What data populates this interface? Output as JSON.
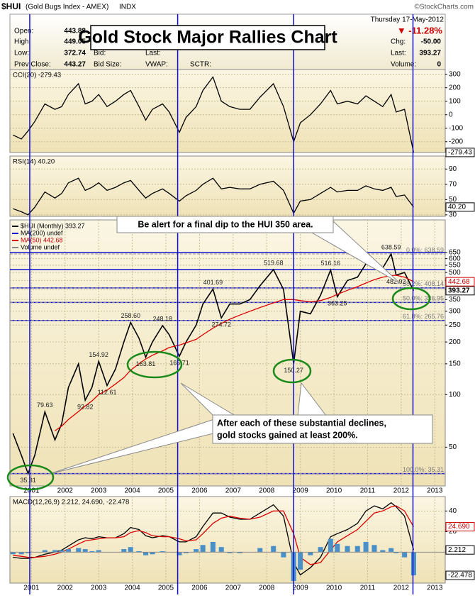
{
  "header": {
    "symbol": "$HUI",
    "name": "(Gold Bugs Index - AMEX)",
    "exchange": "INDX",
    "copyright": "©StockCharts.com",
    "date": "Thursday  17-May-2012",
    "change_pct": "▼ -11.28%",
    "left_fields": [
      {
        "label": "Open:",
        "value": "443.88"
      },
      {
        "label": "High:",
        "value": "449.05"
      },
      {
        "label": "Low:",
        "value": "372.74"
      },
      {
        "label": "Prev Close:",
        "value": "443.27"
      }
    ],
    "mid_fields": [
      {
        "label": "Bid:",
        "y_row": "3"
      },
      {
        "label": "Bid Size:"
      }
    ],
    "mid2_fields": [
      "Last:",
      "VWAP:"
    ],
    "sctr": "SCTR:",
    "right_fields": [
      {
        "label": "Chg:",
        "value": "-50.00"
      },
      {
        "label": "Last:",
        "value": "393.27"
      },
      {
        "label": "Volume:",
        "value": "0"
      }
    ]
  },
  "title": "Gold Stock Major Rallies Chart",
  "annotations": {
    "top": "Be alert for a final dip to the HUI 350 area.",
    "bottom": [
      "After each of these substantial declines,",
      "gold stocks gained at least 200%."
    ]
  },
  "vertical_lines": [
    2000.95,
    2005.35,
    2008.8,
    2012.35
  ],
  "chart_data": [
    {
      "type": "line",
      "title": "CCI(20) -279.43",
      "xlim": [
        2000.36,
        2013.31
      ],
      "ylim": [
        -280,
        335
      ],
      "yticks": [
        300,
        200,
        100,
        0,
        -100,
        -200
      ],
      "x": [
        2000.45,
        2000.7,
        2000.9,
        2001.1,
        2001.4,
        2001.7,
        2001.9,
        2002.1,
        2002.4,
        2002.6,
        2002.8,
        2003.0,
        2003.25,
        2003.5,
        2003.75,
        2003.95,
        2004.2,
        2004.4,
        2004.6,
        2004.9,
        2005.1,
        2005.4,
        2005.6,
        2005.9,
        2006.1,
        2006.4,
        2006.65,
        2006.9,
        2007.2,
        2007.5,
        2007.8,
        2008.2,
        2008.5,
        2008.8,
        2009.0,
        2009.3,
        2009.6,
        2009.9,
        2010.1,
        2010.4,
        2010.7,
        2010.95,
        2011.2,
        2011.45,
        2011.7,
        2011.85,
        2012.1,
        2012.37
      ],
      "series": [
        {
          "color": "#000000",
          "values": [
            -150,
            -180,
            -120,
            -50,
            80,
            40,
            60,
            150,
            230,
            80,
            100,
            150,
            60,
            100,
            150,
            180,
            60,
            -40,
            40,
            80,
            20,
            -130,
            -20,
            60,
            180,
            280,
            100,
            60,
            40,
            40,
            130,
            230,
            60,
            -200,
            -60,
            0,
            80,
            180,
            80,
            100,
            80,
            140,
            100,
            60,
            150,
            20,
            40,
            -279.43
          ]
        }
      ],
      "last_labels": [
        "-279.43"
      ]
    },
    {
      "type": "line",
      "title": "RSI(14) 40.20",
      "xlim": [
        2000.36,
        2013.31
      ],
      "ylim": [
        28,
        107
      ],
      "yticks": [
        90,
        70,
        50,
        30
      ],
      "x": [
        2000.45,
        2000.7,
        2000.9,
        2001.1,
        2001.4,
        2001.7,
        2001.9,
        2002.1,
        2002.4,
        2002.6,
        2002.8,
        2003.0,
        2003.25,
        2003.5,
        2003.75,
        2003.95,
        2004.2,
        2004.4,
        2004.6,
        2004.9,
        2005.1,
        2005.4,
        2005.6,
        2005.9,
        2006.1,
        2006.4,
        2006.65,
        2006.9,
        2007.2,
        2007.5,
        2007.8,
        2008.2,
        2008.5,
        2008.8,
        2009.0,
        2009.3,
        2009.6,
        2009.9,
        2010.1,
        2010.4,
        2010.7,
        2010.95,
        2011.2,
        2011.45,
        2011.7,
        2011.85,
        2012.1,
        2012.37
      ],
      "series": [
        {
          "color": "#000000",
          "values": [
            38,
            34,
            30,
            40,
            60,
            52,
            58,
            72,
            78,
            62,
            66,
            72,
            62,
            66,
            72,
            75,
            62,
            52,
            58,
            64,
            58,
            48,
            55,
            62,
            70,
            78,
            64,
            66,
            64,
            64,
            70,
            74,
            62,
            32,
            48,
            50,
            58,
            66,
            60,
            62,
            62,
            68,
            64,
            62,
            66,
            54,
            56,
            40.2
          ]
        }
      ],
      "last_labels": [
        "40.20"
      ]
    },
    {
      "type": "line",
      "log": true,
      "xlim": [
        2000.36,
        2013.31
      ],
      "ylim": [
        30,
        1000
      ],
      "yticks": [
        650,
        600,
        550,
        500,
        450,
        400,
        350,
        300,
        250,
        200,
        150,
        100,
        50
      ],
      "xticks": [
        2001,
        2002,
        2003,
        2004,
        2005,
        2006,
        2007,
        2008,
        2009,
        2010,
        2011,
        2012,
        2013
      ],
      "x": [
        2000.45,
        2000.7,
        2000.9,
        2001.1,
        2001.4,
        2001.7,
        2001.9,
        2002.1,
        2002.4,
        2002.6,
        2002.8,
        2003.0,
        2003.25,
        2003.5,
        2003.75,
        2003.95,
        2004.2,
        2004.4,
        2004.6,
        2004.9,
        2005.1,
        2005.4,
        2005.6,
        2005.9,
        2006.1,
        2006.4,
        2006.65,
        2006.9,
        2007.2,
        2007.5,
        2007.8,
        2008.2,
        2008.5,
        2008.8,
        2009.0,
        2009.3,
        2009.6,
        2009.9,
        2010.1,
        2010.4,
        2010.7,
        2010.95,
        2011.2,
        2011.45,
        2011.7,
        2011.85,
        2012.1,
        2012.37
      ],
      "series": [
        {
          "name": "$HUI (Monthly) 393.27",
          "color": "#000000",
          "values": [
            60,
            45,
            35.31,
            45,
            79.63,
            55,
            68,
            110,
            150,
            92.82,
            110,
            154.92,
            112.61,
            140,
            200,
            258.6,
            210,
            163.81,
            200,
            248.18,
            220,
            165.71,
            200,
            250,
            330,
            401.69,
            274.72,
            330,
            330,
            350,
            420,
            519.68,
            400,
            150.27,
            300,
            290,
            370,
            516.16,
            363.25,
            450,
            470,
            560,
            540,
            530,
            638.59,
            482.92,
            500,
            393.27
          ]
        },
        {
          "name": "MA(50) 442.68",
          "color": "#dd0000",
          "values": [
            null,
            null,
            null,
            null,
            null,
            62,
            66,
            72,
            80,
            86,
            92,
            100,
            106,
            115,
            125,
            138,
            150,
            160,
            168,
            178,
            186,
            192,
            198,
            207,
            220,
            240,
            255,
            270,
            285,
            300,
            315,
            335,
            350,
            350,
            345,
            340,
            345,
            360,
            375,
            395,
            415,
            435,
            455,
            470,
            480,
            482,
            470,
            442.68
          ]
        }
      ],
      "legend_other": [
        "MA(200) undef",
        "Volume undef"
      ],
      "point_labels": [
        {
          "index": 2,
          "label": "35.31"
        },
        {
          "index": 4,
          "label": "79.63"
        },
        {
          "index": 9,
          "label": "92.82"
        },
        {
          "index": 11,
          "label": "154.92"
        },
        {
          "index": 12,
          "label": "112.61"
        },
        {
          "index": 15,
          "label": "258.60"
        },
        {
          "index": 17,
          "label": "163.81"
        },
        {
          "index": 19,
          "label": "248.18"
        },
        {
          "index": 21,
          "label": "165.71"
        },
        {
          "index": 25,
          "label": "401.69"
        },
        {
          "index": 26,
          "label": "274.72"
        },
        {
          "index": 31,
          "label": "519.68"
        },
        {
          "index": 33,
          "label": "150.27"
        },
        {
          "index": 37,
          "label": "516.16"
        },
        {
          "index": 38,
          "label": "363.25"
        },
        {
          "index": 44,
          "label": "638.59"
        },
        {
          "index": 45,
          "label": "482.92"
        }
      ],
      "fib_levels": [
        {
          "value": 638.59,
          "label": "0.0%: 638.59"
        },
        {
          "value": 408.14,
          "label": "38.2%: 408.14"
        },
        {
          "value": 336.95,
          "label": "50.0%: 336.95"
        },
        {
          "value": 265.76,
          "label": "61.8%: 265.76"
        },
        {
          "value": 35.31,
          "label": "100.0%: 35.31"
        }
      ],
      "horizontal_lines": [
        650,
        519.68,
        408.14,
        336.95,
        265.76,
        35.31
      ],
      "last_labels": [
        "393.27",
        "442.68"
      ]
    },
    {
      "type": "macd",
      "title": "MACD(12,26,9) 2.212, 24.690, -22.478",
      "xlim": [
        2000.36,
        2013.31
      ],
      "ylim": [
        -30,
        54
      ],
      "yticks": [
        40,
        20
      ],
      "xticks": [
        2001,
        2002,
        2003,
        2004,
        2005,
        2006,
        2007,
        2008,
        2009,
        2010,
        2011,
        2012,
        2013
      ],
      "x": [
        2000.45,
        2000.7,
        2000.9,
        2001.1,
        2001.4,
        2001.7,
        2001.9,
        2002.1,
        2002.4,
        2002.6,
        2002.8,
        2003.0,
        2003.25,
        2003.5,
        2003.75,
        2003.95,
        2004.2,
        2004.4,
        2004.6,
        2004.9,
        2005.1,
        2005.4,
        2005.6,
        2005.9,
        2006.1,
        2006.4,
        2006.65,
        2006.9,
        2007.2,
        2007.5,
        2007.8,
        2008.2,
        2008.5,
        2008.8,
        2009.0,
        2009.3,
        2009.6,
        2009.9,
        2010.1,
        2010.4,
        2010.7,
        2010.95,
        2011.2,
        2011.45,
        2011.7,
        2011.85,
        2012.1,
        2012.37
      ],
      "series": [
        {
          "color": "#000000",
          "values": [
            -5,
            -6,
            -6,
            -5,
            -2,
            0,
            2,
            6,
            12,
            14,
            13,
            15,
            14,
            14,
            18,
            24,
            22,
            16,
            14,
            16,
            15,
            10,
            10,
            15,
            25,
            38,
            38,
            34,
            32,
            32,
            38,
            46,
            35,
            -10,
            -22,
            -15,
            -5,
            15,
            18,
            22,
            28,
            40,
            45,
            42,
            48,
            44,
            35,
            2.212
          ]
        },
        {
          "color": "#dd0000",
          "values": [
            -3,
            -4,
            -5,
            -5,
            -4,
            -2,
            0,
            3,
            8,
            11,
            12,
            13,
            14,
            14,
            15,
            19,
            21,
            19,
            16,
            15,
            15,
            13,
            11,
            12,
            18,
            28,
            33,
            35,
            33,
            32,
            34,
            40,
            40,
            18,
            -5,
            -12,
            -10,
            2,
            10,
            16,
            22,
            30,
            38,
            40,
            44,
            45,
            40,
            24.69
          ]
        },
        {
          "color": "#4a90c8",
          "style": "bars",
          "values": [
            -2,
            -2,
            -1,
            0,
            2,
            2,
            2,
            3,
            4,
            3,
            1,
            2,
            0,
            0,
            3,
            5,
            1,
            -3,
            -2,
            1,
            0,
            -3,
            -1,
            3,
            7,
            10,
            5,
            -1,
            -1,
            0,
            4,
            6,
            -5,
            -28,
            -17,
            -3,
            5,
            13,
            8,
            6,
            6,
            10,
            7,
            2,
            4,
            -1,
            -5,
            -22.478
          ]
        }
      ],
      "last_labels": [
        "2.212",
        "24.690",
        "-22.478"
      ]
    }
  ]
}
